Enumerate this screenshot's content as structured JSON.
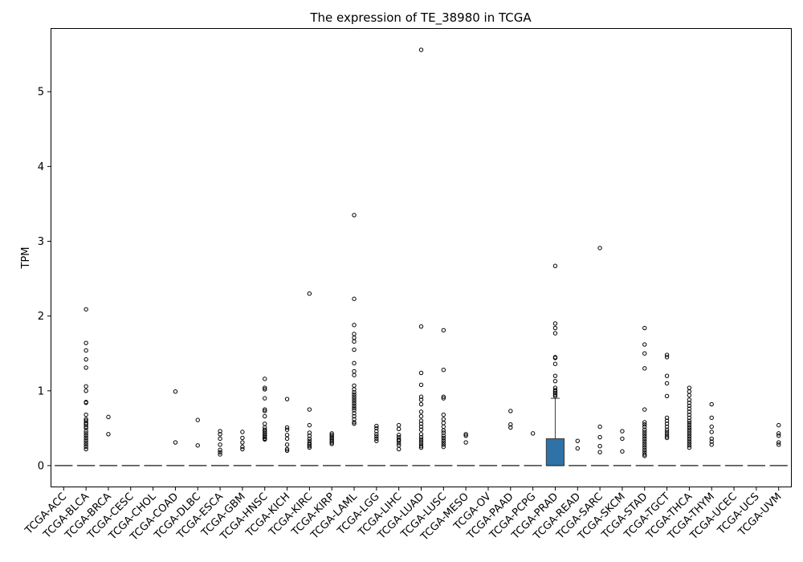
{
  "chart_data": {
    "type": "box",
    "title": "The expression of TE_38980 in TCGA",
    "xlabel": "",
    "ylabel": "TPM",
    "ylim": [
      -0.28,
      5.84
    ],
    "yticks": [
      0,
      1,
      2,
      3,
      4,
      5
    ],
    "box_color": "#2e72a8",
    "categories": [
      "TCGA-ACC",
      "TCGA-BLCA",
      "TCGA-BRCA",
      "TCGA-CESC",
      "TCGA-CHOL",
      "TCGA-COAD",
      "TCGA-DLBC",
      "TCGA-ESCA",
      "TCGA-GBM",
      "TCGA-HNSC",
      "TCGA-KICH",
      "TCGA-KIRC",
      "TCGA-KIRP",
      "TCGA-LAML",
      "TCGA-LGG",
      "TCGA-LIHC",
      "TCGA-LUAD",
      "TCGA-LUSC",
      "TCGA-MESO",
      "TCGA-OV",
      "TCGA-PAAD",
      "TCGA-PCPG",
      "TCGA-PRAD",
      "TCGA-READ",
      "TCGA-SARC",
      "TCGA-SKCM",
      "TCGA-STAD",
      "TCGA-TGCT",
      "TCGA-THCA",
      "TCGA-THYM",
      "TCGA-UCEC",
      "TCGA-UCS",
      "TCGA-UVM"
    ],
    "boxes": [
      {
        "q1": 0,
        "median": 0,
        "q3": 0,
        "whisker_low": 0,
        "whisker_high": 0,
        "outliers": []
      },
      {
        "q1": 0,
        "median": 0,
        "q3": 0,
        "whisker_low": 0,
        "whisker_high": 0,
        "outliers": [
          2.09,
          1.64,
          1.54,
          1.42,
          1.31,
          1.06,
          1.0,
          0.85,
          0.84,
          0.68,
          0.62,
          0.6,
          0.57,
          0.55,
          0.52,
          0.5,
          0.46,
          0.43,
          0.4,
          0.37,
          0.34,
          0.31,
          0.28,
          0.25,
          0.22
        ]
      },
      {
        "q1": 0,
        "median": 0,
        "q3": 0,
        "whisker_low": 0,
        "whisker_high": 0,
        "outliers": [
          0.65,
          0.42
        ]
      },
      {
        "q1": 0,
        "median": 0,
        "q3": 0,
        "whisker_low": 0,
        "whisker_high": 0,
        "outliers": []
      },
      {
        "q1": 0,
        "median": 0,
        "q3": 0,
        "whisker_low": 0,
        "whisker_high": 0,
        "outliers": []
      },
      {
        "q1": 0,
        "median": 0,
        "q3": 0,
        "whisker_low": 0,
        "whisker_high": 0,
        "outliers": [
          0.99,
          0.31
        ]
      },
      {
        "q1": 0,
        "median": 0,
        "q3": 0,
        "whisker_low": 0,
        "whisker_high": 0,
        "outliers": [
          0.61,
          0.27
        ]
      },
      {
        "q1": 0,
        "median": 0,
        "q3": 0,
        "whisker_low": 0,
        "whisker_high": 0,
        "outliers": [
          0.46,
          0.42,
          0.36,
          0.28,
          0.21,
          0.18,
          0.15
        ]
      },
      {
        "q1": 0,
        "median": 0,
        "q3": 0,
        "whisker_low": 0,
        "whisker_high": 0,
        "outliers": [
          0.45,
          0.37,
          0.31,
          0.25,
          0.22
        ]
      },
      {
        "q1": 0,
        "median": 0,
        "q3": 0,
        "whisker_low": 0,
        "whisker_high": 0,
        "outliers": [
          1.16,
          1.04,
          1.02,
          0.9,
          0.75,
          0.73,
          0.66,
          0.56,
          0.51,
          0.48,
          0.46,
          0.44,
          0.42,
          0.4,
          0.38,
          0.36,
          0.35
        ]
      },
      {
        "q1": 0,
        "median": 0,
        "q3": 0,
        "whisker_low": 0,
        "whisker_high": 0,
        "outliers": [
          0.89,
          0.51,
          0.48,
          0.41,
          0.36,
          0.28,
          0.22,
          0.2
        ]
      },
      {
        "q1": 0,
        "median": 0,
        "q3": 0,
        "whisker_low": 0,
        "whisker_high": 0,
        "outliers": [
          2.3,
          0.75,
          0.54,
          0.44,
          0.4,
          0.36,
          0.33,
          0.3,
          0.28,
          0.26,
          0.24
        ]
      },
      {
        "q1": 0,
        "median": 0,
        "q3": 0,
        "whisker_low": 0,
        "whisker_high": 0,
        "outliers": [
          0.43,
          0.41,
          0.39,
          0.37,
          0.35,
          0.33,
          0.31,
          0.29
        ]
      },
      {
        "q1": 0,
        "median": 0,
        "q3": 0,
        "whisker_low": 0,
        "whisker_high": 0,
        "outliers": [
          3.35,
          2.23,
          1.88,
          1.76,
          1.71,
          1.66,
          1.55,
          1.37,
          1.26,
          1.21,
          1.07,
          1.02,
          0.98,
          0.95,
          0.92,
          0.89,
          0.86,
          0.83,
          0.8,
          0.77,
          0.74,
          0.7,
          0.66,
          0.62,
          0.58,
          0.56
        ]
      },
      {
        "q1": 0,
        "median": 0,
        "q3": 0,
        "whisker_low": 0,
        "whisker_high": 0,
        "outliers": [
          0.53,
          0.5,
          0.46,
          0.42,
          0.39,
          0.36,
          0.33
        ]
      },
      {
        "q1": 0,
        "median": 0,
        "q3": 0,
        "whisker_low": 0,
        "whisker_high": 0,
        "outliers": [
          0.54,
          0.49,
          0.41,
          0.38,
          0.35,
          0.33,
          0.3,
          0.27,
          0.22
        ]
      },
      {
        "q1": 0,
        "median": 0,
        "q3": 0,
        "whisker_low": 0,
        "whisker_high": 0,
        "outliers": [
          5.56,
          1.86,
          1.24,
          1.08,
          0.92,
          0.88,
          0.82,
          0.72,
          0.66,
          0.6,
          0.56,
          0.52,
          0.48,
          0.42,
          0.38,
          0.35,
          0.32,
          0.29,
          0.26,
          0.24
        ]
      },
      {
        "q1": 0,
        "median": 0,
        "q3": 0,
        "whisker_low": 0,
        "whisker_high": 0,
        "outliers": [
          1.81,
          1.28,
          0.92,
          0.9,
          0.68,
          0.62,
          0.57,
          0.52,
          0.47,
          0.44,
          0.4,
          0.37,
          0.34,
          0.31,
          0.28,
          0.25
        ]
      },
      {
        "q1": 0,
        "median": 0,
        "q3": 0,
        "whisker_low": 0,
        "whisker_high": 0,
        "outliers": [
          0.42,
          0.4,
          0.31
        ]
      },
      {
        "q1": 0,
        "median": 0,
        "q3": 0,
        "whisker_low": 0,
        "whisker_high": 0,
        "outliers": []
      },
      {
        "q1": 0,
        "median": 0,
        "q3": 0,
        "whisker_low": 0,
        "whisker_high": 0,
        "outliers": [
          0.73,
          0.55,
          0.51
        ]
      },
      {
        "q1": 0,
        "median": 0,
        "q3": 0,
        "whisker_low": 0,
        "whisker_high": 0,
        "outliers": [
          0.43
        ]
      },
      {
        "q1": 0,
        "median": 0,
        "q3": 0.36,
        "whisker_low": 0,
        "whisker_high": 0.9,
        "outliers": [
          2.67,
          1.9,
          1.84,
          1.77,
          1.45,
          1.44,
          1.36,
          1.2,
          1.13,
          1.04,
          1.01,
          0.99,
          0.97,
          0.95,
          0.93
        ]
      },
      {
        "q1": 0,
        "median": 0,
        "q3": 0,
        "whisker_low": 0,
        "whisker_high": 0,
        "outliers": [
          0.33,
          0.23
        ]
      },
      {
        "q1": 0,
        "median": 0,
        "q3": 0,
        "whisker_low": 0,
        "whisker_high": 0,
        "outliers": [
          2.91,
          0.52,
          0.38,
          0.26,
          0.18
        ]
      },
      {
        "q1": 0,
        "median": 0,
        "q3": 0,
        "whisker_low": 0,
        "whisker_high": 0,
        "outliers": [
          0.46,
          0.36,
          0.19
        ]
      },
      {
        "q1": 0,
        "median": 0,
        "q3": 0,
        "whisker_low": 0,
        "whisker_high": 0,
        "outliers": [
          1.84,
          1.62,
          1.5,
          1.3,
          0.75,
          0.58,
          0.55,
          0.52,
          0.48,
          0.45,
          0.42,
          0.39,
          0.36,
          0.33,
          0.3,
          0.27,
          0.24,
          0.21,
          0.18,
          0.15,
          0.13
        ]
      },
      {
        "q1": 0,
        "median": 0,
        "q3": 0,
        "whisker_low": 0,
        "whisker_high": 0,
        "outliers": [
          1.48,
          1.45,
          1.2,
          1.1,
          0.93,
          0.64,
          0.6,
          0.56,
          0.52,
          0.48,
          0.45,
          0.42,
          0.39,
          0.37
        ]
      },
      {
        "q1": 0,
        "median": 0,
        "q3": 0,
        "whisker_low": 0,
        "whisker_high": 0,
        "outliers": [
          1.04,
          0.99,
          0.94,
          0.88,
          0.84,
          0.8,
          0.76,
          0.72,
          0.68,
          0.64,
          0.6,
          0.57,
          0.54,
          0.51,
          0.48,
          0.45,
          0.42,
          0.39,
          0.36,
          0.33,
          0.3,
          0.27,
          0.24
        ]
      },
      {
        "q1": 0,
        "median": 0,
        "q3": 0,
        "whisker_low": 0,
        "whisker_high": 0,
        "outliers": [
          0.82,
          0.64,
          0.52,
          0.45,
          0.36,
          0.32,
          0.28
        ]
      },
      {
        "q1": 0,
        "median": 0,
        "q3": 0,
        "whisker_low": 0,
        "whisker_high": 0,
        "outliers": []
      },
      {
        "q1": 0,
        "median": 0,
        "q3": 0,
        "whisker_low": 0,
        "whisker_high": 0,
        "outliers": []
      },
      {
        "q1": 0,
        "median": 0,
        "q3": 0,
        "whisker_low": 0,
        "whisker_high": 0,
        "outliers": [
          0.54,
          0.43,
          0.4,
          0.31,
          0.28
        ]
      }
    ]
  }
}
